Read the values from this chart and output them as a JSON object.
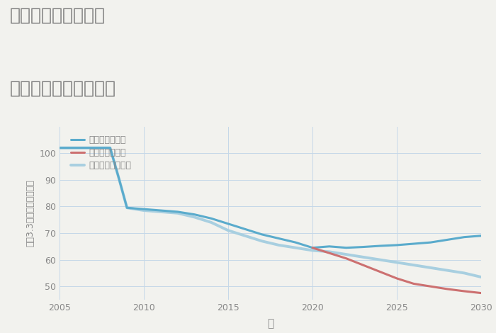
{
  "title_line1": "三重県桑名市筒尾の",
  "title_line2": "中古戸建ての価格推移",
  "xlabel": "年",
  "ylabel": "坪（3.3㎡）単価（万円）",
  "background_color": "#f2f2ee",
  "plot_background": "#f2f2ee",
  "grid_color": "#c5d8e8",
  "xlim": [
    2005,
    2030
  ],
  "ylim": [
    45,
    110
  ],
  "yticks": [
    50,
    60,
    70,
    80,
    90,
    100
  ],
  "xticks": [
    2005,
    2010,
    2015,
    2020,
    2025,
    2030
  ],
  "good_scenario": {
    "label": "グッドシナリオ",
    "color": "#5aabcc",
    "linewidth": 2.2,
    "x": [
      2005,
      2006,
      2007,
      2008,
      2008.5,
      2009,
      2010,
      2011,
      2012,
      2013,
      2014,
      2015,
      2016,
      2017,
      2018,
      2019,
      2020,
      2021,
      2022,
      2023,
      2024,
      2025,
      2026,
      2027,
      2028,
      2029,
      2030
    ],
    "y": [
      102,
      102,
      102,
      102,
      91,
      79.5,
      79,
      78.5,
      78,
      77,
      75.5,
      73.5,
      71.5,
      69.5,
      68,
      66.5,
      64.5,
      65,
      64.5,
      64.8,
      65.2,
      65.5,
      66,
      66.5,
      67.5,
      68.5,
      69
    ]
  },
  "bad_scenario": {
    "label": "バッドシナリオ",
    "color": "#cc7070",
    "linewidth": 2.2,
    "x": [
      2020,
      2021,
      2022,
      2023,
      2024,
      2025,
      2026,
      2027,
      2028,
      2029,
      2030
    ],
    "y": [
      64.5,
      62.5,
      60.5,
      58,
      55.5,
      53,
      51,
      50,
      49,
      48.2,
      47.5
    ]
  },
  "normal_scenario": {
    "label": "ノーマルシナリオ",
    "color": "#a8cfe0",
    "linewidth": 2.8,
    "x": [
      2005,
      2006,
      2007,
      2008,
      2008.5,
      2009,
      2010,
      2011,
      2012,
      2013,
      2014,
      2015,
      2016,
      2017,
      2018,
      2019,
      2020,
      2021,
      2022,
      2023,
      2024,
      2025,
      2026,
      2027,
      2028,
      2029,
      2030
    ],
    "y": [
      102,
      102,
      102,
      102,
      91,
      79.5,
      78.5,
      78,
      77.5,
      76,
      74,
      71,
      69,
      67,
      65.5,
      64.5,
      63.5,
      63,
      62,
      61,
      60,
      59,
      58,
      57,
      56,
      55,
      53.5
    ]
  },
  "title_color": "#777777",
  "title_fontsize": 18,
  "tick_color": "#888888",
  "label_color": "#888888"
}
